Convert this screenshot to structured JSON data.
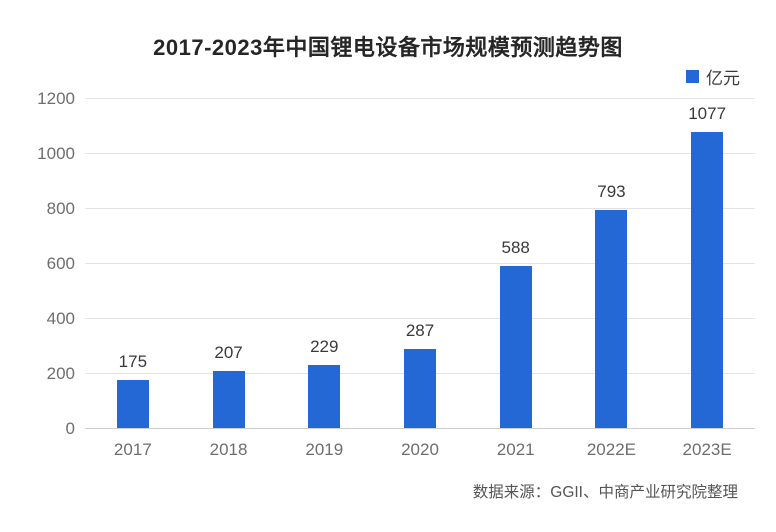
{
  "title": "2017-2023年中国锂电设备市场规模预测趋势图",
  "legend": {
    "label": "亿元"
  },
  "source": "数据来源：GGII、中商产业研究院整理",
  "colors": {
    "bar": "#2368d4",
    "grid": "#e3e3e3",
    "axis_line": "#cfcfcf",
    "tick_text": "#6e6e6e",
    "value_text": "#3a3a3a",
    "title_text": "#262626",
    "source_text": "#555555"
  },
  "chart_data": {
    "type": "bar",
    "categories": [
      "2017",
      "2018",
      "2019",
      "2020",
      "2021",
      "2022E",
      "2023E"
    ],
    "values": [
      175,
      207,
      229,
      287,
      588,
      793,
      1077
    ],
    "title": "2017-2023年中国锂电设备市场规模预测趋势图",
    "xlabel": "",
    "ylabel": "",
    "unit": "亿元",
    "ylim": [
      0,
      1200
    ],
    "ytick_step": 200,
    "yticks": [
      0,
      200,
      400,
      600,
      800,
      1000,
      1200
    ],
    "grid": true,
    "legend_entries": [
      "亿元"
    ],
    "legend_position": "top-right",
    "value_labels": true
  }
}
